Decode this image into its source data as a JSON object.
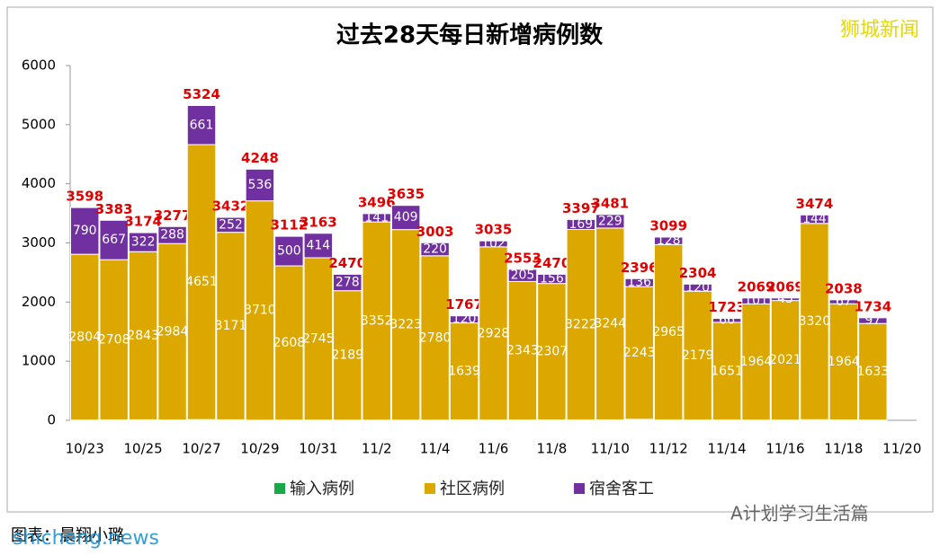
{
  "chart_data": {
    "type": "stacked-bar",
    "title": "过去28天每日新增病例数",
    "watermark": "狮城新闻",
    "credit": "图表：晨翔小璐",
    "site": "shicheng.news",
    "wechat": "A计划学习生活篇",
    "categories": [
      "10/23",
      null,
      "10/25",
      null,
      "10/27",
      null,
      "10/29",
      null,
      "10/31",
      null,
      "11/2",
      null,
      "11/4",
      null,
      "11/6",
      null,
      "11/8",
      null,
      "11/10",
      null,
      "11/12",
      null,
      "11/14",
      null,
      "11/16",
      null,
      "11/18",
      null,
      "11/20"
    ],
    "series": [
      {
        "name": "输入病例",
        "color": "#1aa84a",
        "label_color": "#1aa84a",
        "values": [
          4,
          8,
          9,
          5,
          12,
          9,
          2,
          4,
          4,
          3,
          3,
          3,
          3,
          8,
          5,
          5,
          7,
          6,
          8,
          17,
          6,
          5,
          6,
          4,
          5,
          10,
          7,
          4,
          null
        ]
      },
      {
        "name": "社区病例",
        "color": "#dca800",
        "label_color": "#ffffff",
        "values": [
          2804,
          2708,
          2843,
          2984,
          4651,
          3171,
          3710,
          2608,
          2745,
          2189,
          3352,
          3223,
          2780,
          1639,
          2928,
          2343,
          2307,
          3222,
          3244,
          2243,
          2965,
          2179,
          1651,
          1964,
          2021,
          3320,
          1964,
          1633,
          null
        ]
      },
      {
        "name": "宿舍客工",
        "color": "#7030a0",
        "label_color": "#ffffff",
        "values": [
          790,
          667,
          322,
          288,
          661,
          252,
          536,
          500,
          414,
          278,
          141,
          409,
          220,
          120,
          102,
          205,
          156,
          169,
          229,
          136,
          128,
          120,
          66,
          101,
          43,
          144,
          67,
          97,
          null
        ]
      }
    ],
    "totals": [
      3598,
      3383,
      3174,
      3277,
      5324,
      3432,
      4248,
      3112,
      3163,
      2470,
      3496,
      3635,
      3003,
      1767,
      3035,
      2553,
      2470,
      3397,
      3481,
      2396,
      3099,
      2304,
      1723,
      2069,
      2069,
      3474,
      2038,
      1734,
      null
    ],
    "total_color": "#e00000",
    "ylim": [
      0,
      6000
    ],
    "yticks": [
      0,
      1000,
      2000,
      3000,
      4000,
      5000,
      6000
    ]
  }
}
